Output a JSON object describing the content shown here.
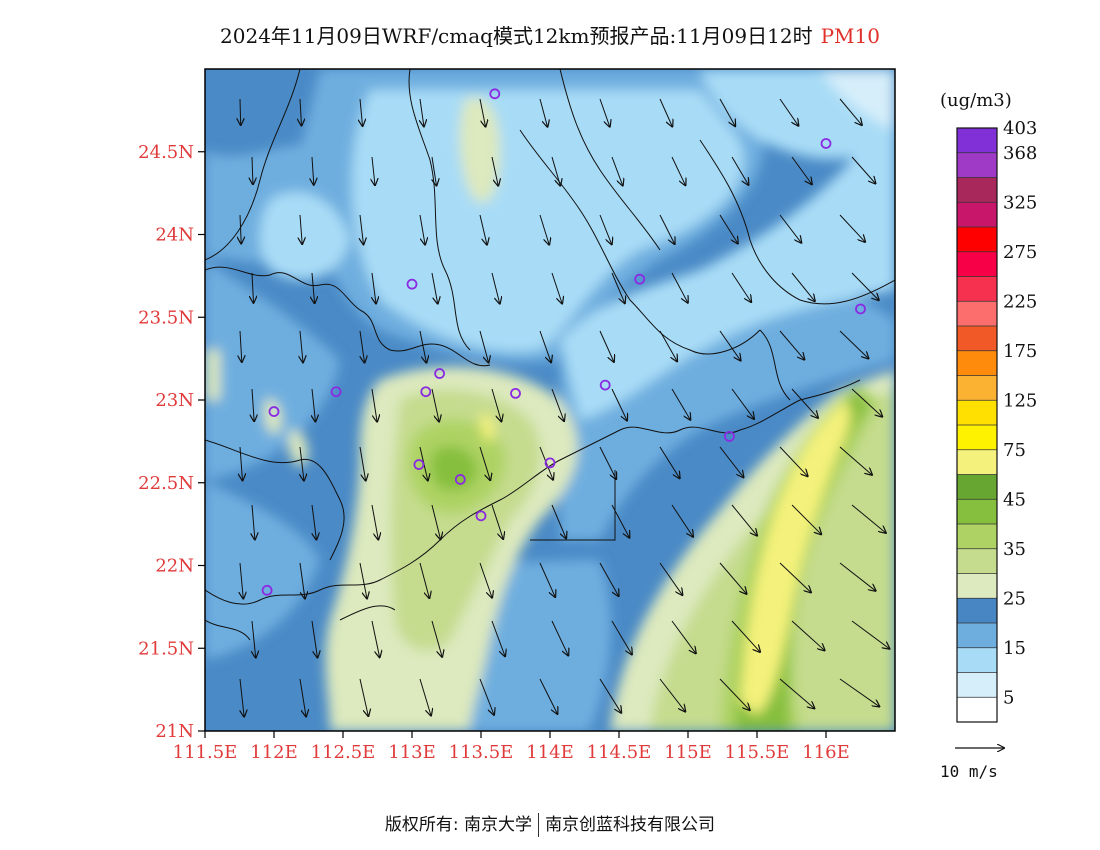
{
  "title": {
    "main": "2024年11月09日WRF/cmaq模式12km预报产品:11月09日12时",
    "variable": "PM10"
  },
  "map": {
    "lon_range": [
      111.5,
      116.5
    ],
    "lat_range": [
      21.0,
      25.0
    ],
    "lat_ticks": [
      {
        "value": 21.0,
        "label": "21N"
      },
      {
        "value": 21.5,
        "label": "21.5N"
      },
      {
        "value": 22.0,
        "label": "22N"
      },
      {
        "value": 22.5,
        "label": "22.5N"
      },
      {
        "value": 23.0,
        "label": "23N"
      },
      {
        "value": 23.5,
        "label": "23.5N"
      },
      {
        "value": 24.0,
        "label": "24N"
      },
      {
        "value": 24.5,
        "label": "24.5N"
      }
    ],
    "lon_ticks": [
      {
        "value": 111.5,
        "label": "111.5E"
      },
      {
        "value": 112.0,
        "label": "112E"
      },
      {
        "value": 112.5,
        "label": "112.5E"
      },
      {
        "value": 113.0,
        "label": "113E"
      },
      {
        "value": 113.5,
        "label": "113.5E"
      },
      {
        "value": 114.0,
        "label": "114E"
      },
      {
        "value": 114.5,
        "label": "114.5E"
      },
      {
        "value": 115.0,
        "label": "115E"
      },
      {
        "value": 115.5,
        "label": "115.5E"
      },
      {
        "value": 116.0,
        "label": "116E"
      }
    ],
    "stations": [
      [
        113.6,
        24.85
      ],
      [
        116.0,
        24.55
      ],
      [
        113.0,
        23.7
      ],
      [
        114.65,
        23.73
      ],
      [
        116.25,
        23.55
      ],
      [
        113.2,
        23.16
      ],
      [
        113.1,
        23.05
      ],
      [
        113.75,
        23.04
      ],
      [
        114.4,
        23.09
      ],
      [
        112.45,
        23.05
      ],
      [
        112.0,
        22.93
      ],
      [
        115.3,
        22.78
      ],
      [
        113.05,
        22.61
      ],
      [
        114.0,
        22.62
      ],
      [
        113.35,
        22.52
      ],
      [
        113.5,
        22.3
      ],
      [
        111.95,
        21.85
      ]
    ],
    "wind_reference": {
      "label": "10 m/s"
    }
  },
  "colorbar": {
    "unit": "(ug/m3)",
    "bins": [
      "#ffffff",
      "#d6eefa",
      "#a8dcf6",
      "#6eaedf",
      "#4786c3",
      "#dde9be",
      "#c5dc8e",
      "#aed364",
      "#86bf3e",
      "#66a631",
      "#f4f27c",
      "#fff200",
      "#ffe000",
      "#fbb232",
      "#fe8b0b",
      "#f15a26",
      "#fc6e6e",
      "#f6304f",
      "#f70048",
      "#fe0000",
      "#c8166b",
      "#a9285c",
      "#9f3ac7",
      "#8130d8"
    ],
    "labels": [
      {
        "value": "5",
        "boundary": 1
      },
      {
        "value": "15",
        "boundary": 3
      },
      {
        "value": "25",
        "boundary": 5
      },
      {
        "value": "35",
        "boundary": 7
      },
      {
        "value": "45",
        "boundary": 9
      },
      {
        "value": "75",
        "boundary": 11
      },
      {
        "value": "125",
        "boundary": 13
      },
      {
        "value": "175",
        "boundary": 15
      },
      {
        "value": "225",
        "boundary": 17
      },
      {
        "value": "275",
        "boundary": 19
      },
      {
        "value": "325",
        "boundary": 21
      },
      {
        "value": "368",
        "boundary": 23
      },
      {
        "value": "403",
        "boundary": 24
      }
    ]
  },
  "copyright": {
    "left": "版权所有: 南京大学",
    "right": "南京创蓝科技有限公司"
  }
}
